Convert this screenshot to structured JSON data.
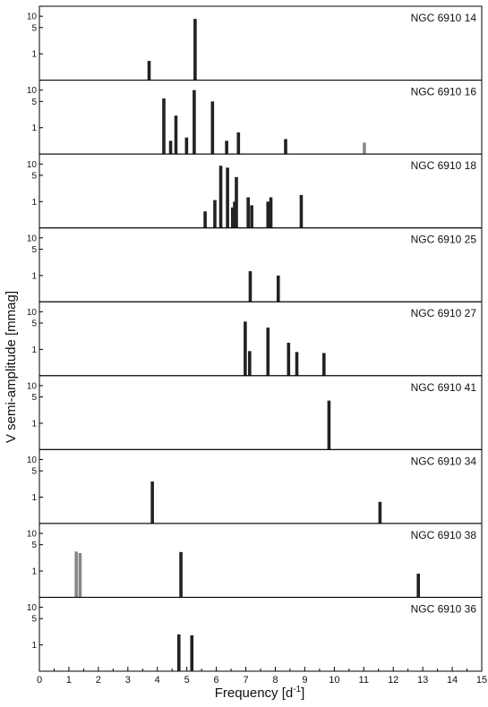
{
  "chart_data": {
    "type": "bar",
    "xlabel_text": "Frequency [d",
    "xlabel_sup": "-1",
    "xlabel_close": "]",
    "ylabel": "V semi-amplitude [mmag]",
    "xlim": [
      0,
      15
    ],
    "x_ticks": [
      "0",
      "1",
      "2",
      "3",
      "4",
      "5",
      "6",
      "7",
      "8",
      "9",
      "10",
      "11",
      "12",
      "13",
      "14",
      "15"
    ],
    "y_scale": "log",
    "ylim": [
      0.2,
      14
    ],
    "y_ticks": [
      {
        "value": 10,
        "label": "10"
      },
      {
        "value": 5,
        "label": "5"
      },
      {
        "value": 1,
        "label": "1"
      }
    ],
    "colors": {
      "bar": "#222222",
      "bar_gray": "#888888",
      "frame": "#000000"
    },
    "panels": [
      {
        "label": "NGC 6910 14",
        "bars": [
          {
            "x": 3.72,
            "y": 0.65
          },
          {
            "x": 5.28,
            "y": 8.5
          }
        ]
      },
      {
        "label": "NGC 6910 16",
        "bars": [
          {
            "x": 4.22,
            "y": 6.0
          },
          {
            "x": 4.45,
            "y": 0.45
          },
          {
            "x": 4.63,
            "y": 2.1
          },
          {
            "x": 4.99,
            "y": 0.55
          },
          {
            "x": 5.25,
            "y": 10.0
          },
          {
            "x": 5.87,
            "y": 5.0
          },
          {
            "x": 6.35,
            "y": 0.45
          },
          {
            "x": 6.75,
            "y": 0.75
          },
          {
            "x": 8.35,
            "y": 0.5
          },
          {
            "x": 11.02,
            "y": 0.4,
            "gray": true
          }
        ]
      },
      {
        "label": "NGC 6910 18",
        "bars": [
          {
            "x": 5.62,
            "y": 0.55
          },
          {
            "x": 5.95,
            "y": 1.1
          },
          {
            "x": 6.15,
            "y": 9.0
          },
          {
            "x": 6.38,
            "y": 8.0
          },
          {
            "x": 6.55,
            "y": 0.7
          },
          {
            "x": 6.62,
            "y": 1.0
          },
          {
            "x": 6.68,
            "y": 4.5
          },
          {
            "x": 7.08,
            "y": 1.3
          },
          {
            "x": 7.2,
            "y": 0.8
          },
          {
            "x": 7.75,
            "y": 1.0
          },
          {
            "x": 7.85,
            "y": 1.3
          },
          {
            "x": 8.88,
            "y": 1.5
          }
        ]
      },
      {
        "label": "NGC 6910 25",
        "bars": [
          {
            "x": 7.15,
            "y": 1.3
          },
          {
            "x": 8.1,
            "y": 1.0
          }
        ]
      },
      {
        "label": "NGC 6910 27",
        "bars": [
          {
            "x": 6.98,
            "y": 5.5
          },
          {
            "x": 7.13,
            "y": 0.9
          },
          {
            "x": 7.75,
            "y": 3.8
          },
          {
            "x": 8.45,
            "y": 1.5
          },
          {
            "x": 8.73,
            "y": 0.85
          },
          {
            "x": 9.65,
            "y": 0.8
          }
        ]
      },
      {
        "label": "NGC 6910 41",
        "bars": [
          {
            "x": 9.82,
            "y": 4.0
          }
        ]
      },
      {
        "label": "NGC 6910 34",
        "bars": [
          {
            "x": 3.83,
            "y": 2.6
          },
          {
            "x": 11.55,
            "y": 0.75
          }
        ]
      },
      {
        "label": "NGC 6910 38",
        "bars": [
          {
            "x": 1.25,
            "y": 3.3,
            "gray": true
          },
          {
            "x": 1.38,
            "y": 3.0,
            "gray": true
          },
          {
            "x": 4.8,
            "y": 3.2
          },
          {
            "x": 12.85,
            "y": 0.85
          }
        ]
      },
      {
        "label": "NGC 6910 36",
        "bars": [
          {
            "x": 4.73,
            "y": 1.9
          },
          {
            "x": 5.17,
            "y": 1.8
          }
        ]
      }
    ]
  }
}
